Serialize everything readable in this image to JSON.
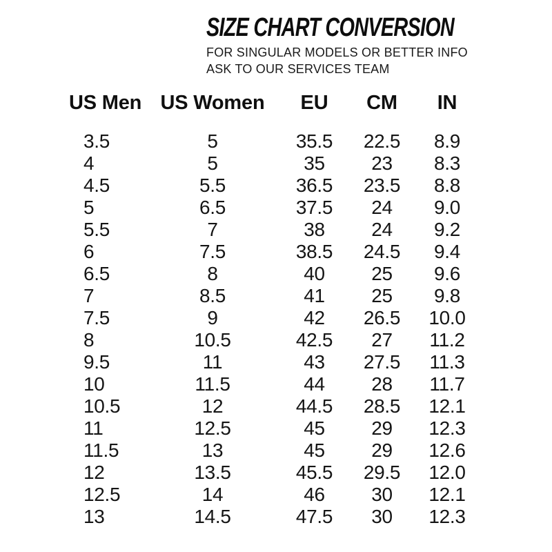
{
  "page": {
    "background_color": "#ffffff",
    "text_color": "#141414"
  },
  "header": {
    "title": "SIZE CHART CONVERSION",
    "subtitle_line1": "FOR SINGULAR MODELS OR BETTER INFO",
    "subtitle_line2": "ASK TO OUR SERVICES TEAM"
  },
  "table": {
    "columns": [
      "US Men",
      "US Women",
      "EU",
      "CM",
      "IN"
    ],
    "column_keys": [
      "us-men",
      "us-women",
      "eu",
      "cm",
      "in"
    ],
    "rows": [
      [
        "3.5",
        "5",
        "35.5",
        "22.5",
        "8.9"
      ],
      [
        "4",
        "5",
        "35",
        "23",
        "8.3"
      ],
      [
        "4.5",
        "5.5",
        "36.5",
        "23.5",
        "8.8"
      ],
      [
        "5",
        "6.5",
        "37.5",
        "24",
        "9.0"
      ],
      [
        "5.5",
        "7",
        "38",
        "24",
        "9.2"
      ],
      [
        "6",
        "7.5",
        "38.5",
        "24.5",
        "9.4"
      ],
      [
        "6.5",
        "8",
        "40",
        "25",
        "9.6"
      ],
      [
        "7",
        "8.5",
        "41",
        "25",
        "9.8"
      ],
      [
        "7.5",
        "9",
        "42",
        "26.5",
        "10.0"
      ],
      [
        "8",
        "10.5",
        "42.5",
        "27",
        "11.2"
      ],
      [
        "9.5",
        "11",
        "43",
        "27.5",
        "11.3"
      ],
      [
        "10",
        "11.5",
        "44",
        "28",
        "11.7"
      ],
      [
        "10.5",
        "12",
        "44.5",
        "28.5",
        "12.1"
      ],
      [
        "11",
        "12.5",
        "45",
        "29",
        "12.3"
      ],
      [
        "11.5",
        "13",
        "45",
        "29",
        "12.6"
      ],
      [
        "12",
        "13.5",
        "45.5",
        "29.5",
        "12.0"
      ],
      [
        "12.5",
        "14",
        "46",
        "30",
        "12.1"
      ],
      [
        "13",
        "14.5",
        "47.5",
        "30",
        "12.3"
      ]
    ]
  }
}
